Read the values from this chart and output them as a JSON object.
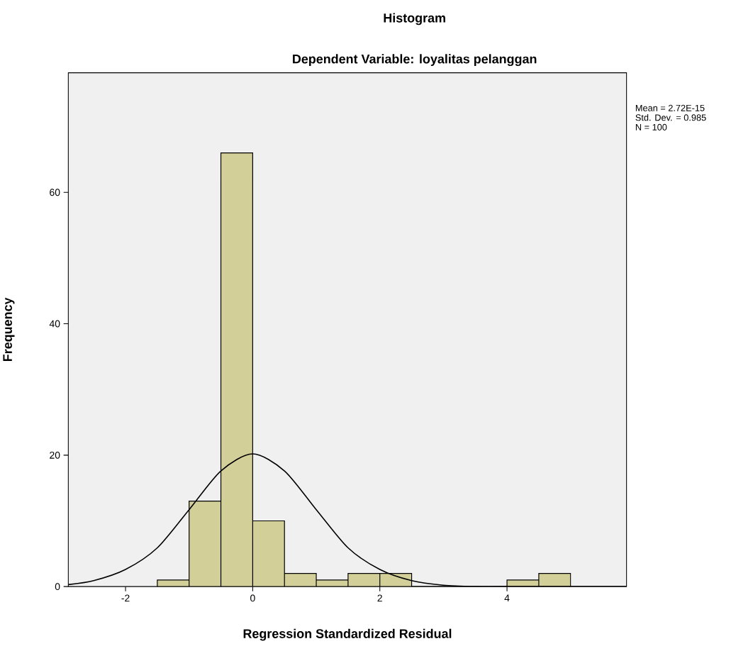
{
  "chart_data": {
    "type": "histogram",
    "title": "Histogram",
    "subtitle": "Dependent Variable: loyalitas pelanggan",
    "xlabel": "Regression Standardized Residual",
    "ylabel": "Frequency",
    "annotations": [
      "Mean = 2.72E-15",
      "Std. Dev. = 0.985",
      "N = 100"
    ],
    "series": [
      {
        "color": "#d3cf98",
        "bins": [
          -1.5,
          -1.0,
          -0.5,
          0.0,
          0.5,
          1.0,
          1.5,
          2.0,
          2.5,
          3.0,
          3.5,
          4.0,
          4.5,
          5.0
        ],
        "values": [
          1,
          13,
          66,
          10,
          2,
          1,
          2,
          2,
          0,
          0,
          0,
          1,
          2
        ]
      },
      {
        "type": "line",
        "color": "#000000",
        "x": [
          -2.9,
          -2.5,
          -2.0,
          -1.5,
          -1.0,
          -0.5,
          0.0,
          0.5,
          1.0,
          1.5,
          2.0,
          2.5,
          3.0,
          3.5,
          4.0,
          5.88
        ],
        "values": [
          0.3,
          0.9,
          2.6,
          5.9,
          11.7,
          17.6,
          20.2,
          17.6,
          11.7,
          5.9,
          2.6,
          0.9,
          0.2,
          0.0,
          0.0,
          0.0
        ]
      }
    ],
    "xlim": [
      -2.9,
      5.88
    ],
    "ylim": [
      0,
      78.2
    ],
    "xticks": [
      -2,
      0,
      2,
      4
    ],
    "yticks": [
      0,
      20,
      40,
      60
    ],
    "grid": false
  }
}
